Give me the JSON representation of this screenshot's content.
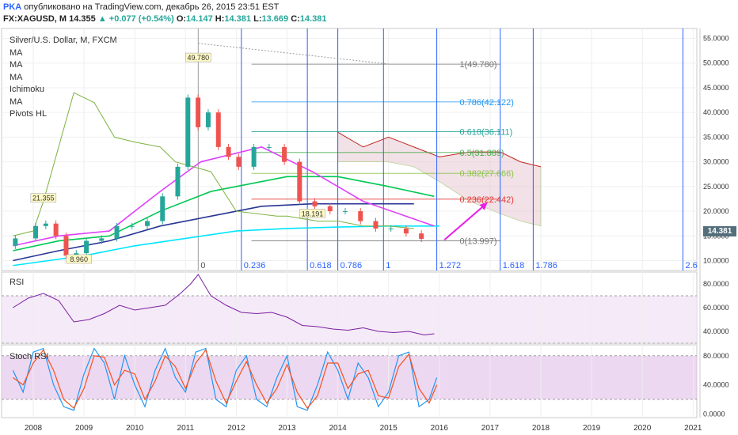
{
  "header": {
    "author": "PKA",
    "published": "опубликовано на TradingView.com, декабрь 26, 2015 23:51 EST",
    "symbol": "FX:XAGUSD, M",
    "last": "14.355",
    "change": "+0.077 (+0.54%)",
    "o_label": "O:",
    "o": "14.147",
    "h_label": "H:",
    "h": "14.381",
    "l_label": "L:",
    "l": "13.669",
    "c_label": "C:",
    "c": "14.381"
  },
  "legend": [
    "Silver/U.S. Dollar, M, FXCM",
    "MA",
    "MA",
    "MA",
    "Ichimoku",
    "MA",
    "Pivots HL"
  ],
  "price_badge": "14.381",
  "colors": {
    "up": "#26a69a",
    "down": "#ef5350",
    "fib_time": "#2962ff",
    "arrow": "#e91ee6",
    "rsi": "#7b1fa2",
    "stoch_k": "#2196f3",
    "stoch_d": "#f4511e"
  },
  "chart_data": [
    {
      "type": "line",
      "panel": "price",
      "x_ticks": [
        "2008",
        "2009",
        "2010",
        "2011",
        "2012",
        "2013",
        "2014",
        "2015",
        "2016",
        "2017",
        "2018",
        "2019",
        "2020",
        "2021"
      ],
      "y_ticks": [
        "55.0000",
        "50.0000",
        "45.0000",
        "40.0000",
        "35.0000",
        "30.0000",
        "25.0000",
        "20.0000",
        "15.0000",
        "10.0000"
      ],
      "ylim": [
        8,
        57
      ],
      "series": [
        {
          "x": [
            2007.6,
            2008.0,
            2008.2,
            2008.4,
            2008.6,
            2008.8,
            2009.0,
            2009.3,
            2009.6,
            2009.9,
            2010.2,
            2010.5,
            2010.8,
            2011.0,
            2011.2,
            2011.4,
            2011.6,
            2011.8,
            2012.0,
            2012.3,
            2012.6,
            2012.9,
            2013.2,
            2013.5,
            2013.8,
            2014.1,
            2014.4,
            2014.7,
            2015.0,
            2015.3,
            2015.6,
            2015.9
          ],
          "y": [
            13,
            14.5,
            17,
            17.5,
            15,
            11,
            11.5,
            14,
            14.5,
            17,
            17,
            18,
            23,
            29,
            43,
            37,
            40,
            33,
            31,
            29,
            33,
            33,
            30,
            22,
            21,
            20,
            20,
            18,
            16.5,
            16.5,
            15.5,
            14.4
          ]
        }
      ],
      "annotations": [
        {
          "label": "49.780",
          "x": 2011.25,
          "y": 49.78
        },
        {
          "label": "21.355",
          "x": 2008.2,
          "y": 21.355
        },
        {
          "label": "8.960",
          "x": 2008.9,
          "y": 8.96
        },
        {
          "label": "18.191",
          "x": 2013.5,
          "y": 18.191
        }
      ],
      "fib_retracement": [
        {
          "label": "1(49.780)",
          "value": 49.78
        },
        {
          "label": "0.786(42.122)",
          "value": 42.122
        },
        {
          "label": "0.618(36.111)",
          "value": 36.111
        },
        {
          "label": "0.5(31.889)",
          "value": 31.889
        },
        {
          "label": "0.382(27.666)",
          "value": 27.666
        },
        {
          "label": "0.236(22.442)",
          "value": 22.442
        },
        {
          "label": "0(13.997)",
          "value": 13.997
        }
      ],
      "fib_time": [
        {
          "label": "0",
          "x": 2011.25
        },
        {
          "label": "0.236",
          "x": 2012.1
        },
        {
          "label": "0.618",
          "x": 2013.4
        },
        {
          "label": "0.786",
          "x": 2014.0
        },
        {
          "label": "1",
          "x": 2014.9
        },
        {
          "label": "1.272",
          "x": 2015.95
        },
        {
          "label": "1.618",
          "x": 2017.2
        },
        {
          "label": "1.786",
          "x": 2017.85
        },
        {
          "label": "2.6",
          "x": 2020.8
        }
      ]
    },
    {
      "type": "line",
      "panel": "rsi",
      "title": "RSI",
      "y_ticks": [
        "80.0000",
        "60.0000",
        "40.0000"
      ],
      "ylim": [
        30,
        90
      ],
      "series": [
        {
          "x": [
            2007.6,
            2007.9,
            2008.2,
            2008.5,
            2008.8,
            2009.1,
            2009.4,
            2009.7,
            2010.0,
            2010.3,
            2010.6,
            2010.9,
            2011.1,
            2011.25,
            2011.5,
            2011.8,
            2012.1,
            2012.4,
            2012.7,
            2013.0,
            2013.3,
            2013.6,
            2013.9,
            2014.2,
            2014.5,
            2014.8,
            2015.1,
            2015.4,
            2015.7,
            2015.9
          ],
          "y": [
            60,
            68,
            72,
            66,
            48,
            50,
            55,
            62,
            58,
            60,
            62,
            72,
            80,
            88,
            70,
            62,
            56,
            55,
            56,
            52,
            45,
            44,
            42,
            41,
            43,
            40,
            39,
            40,
            37,
            38
          ]
        }
      ]
    },
    {
      "type": "line",
      "panel": "stoch_rsi",
      "title": "Stoch RSI",
      "y_ticks": [
        "80.0000",
        "40.0000",
        "0.0000"
      ],
      "ylim": [
        -5,
        95
      ],
      "series": [
        {
          "x": [
            2007.6,
            2007.8,
            2008.0,
            2008.2,
            2008.4,
            2008.6,
            2008.8,
            2009.0,
            2009.2,
            2009.4,
            2009.6,
            2009.8,
            2010.0,
            2010.2,
            2010.4,
            2010.6,
            2010.8,
            2011.0,
            2011.2,
            2011.4,
            2011.6,
            2011.8,
            2012.0,
            2012.2,
            2012.4,
            2012.6,
            2012.8,
            2013.0,
            2013.2,
            2013.4,
            2013.6,
            2013.8,
            2014.0,
            2014.2,
            2014.4,
            2014.6,
            2014.8,
            2015.0,
            2015.2,
            2015.4,
            2015.6,
            2015.8,
            2015.95
          ],
          "y": [
            60,
            30,
            85,
            90,
            40,
            10,
            5,
            55,
            90,
            70,
            20,
            80,
            40,
            10,
            60,
            90,
            50,
            30,
            85,
            90,
            20,
            10,
            60,
            80,
            20,
            10,
            50,
            80,
            10,
            5,
            40,
            85,
            60,
            20,
            70,
            50,
            10,
            30,
            80,
            85,
            10,
            20,
            50
          ]
        },
        {
          "x": [
            2007.6,
            2007.8,
            2008.0,
            2008.2,
            2008.4,
            2008.6,
            2008.8,
            2009.0,
            2009.2,
            2009.4,
            2009.6,
            2009.8,
            2010.0,
            2010.2,
            2010.4,
            2010.6,
            2010.8,
            2011.0,
            2011.2,
            2011.4,
            2011.6,
            2011.8,
            2012.0,
            2012.2,
            2012.4,
            2012.6,
            2012.8,
            2013.0,
            2013.2,
            2013.4,
            2013.6,
            2013.8,
            2014.0,
            2014.2,
            2014.4,
            2014.6,
            2014.8,
            2015.0,
            2015.2,
            2015.4,
            2015.6,
            2015.8,
            2015.95
          ],
          "y": [
            50,
            40,
            70,
            88,
            60,
            20,
            8,
            35,
            80,
            78,
            40,
            60,
            55,
            20,
            45,
            80,
            65,
            35,
            70,
            88,
            45,
            15,
            45,
            72,
            40,
            15,
            35,
            68,
            30,
            8,
            25,
            70,
            70,
            35,
            55,
            60,
            25,
            22,
            65,
            82,
            35,
            15,
            40
          ]
        }
      ]
    }
  ]
}
